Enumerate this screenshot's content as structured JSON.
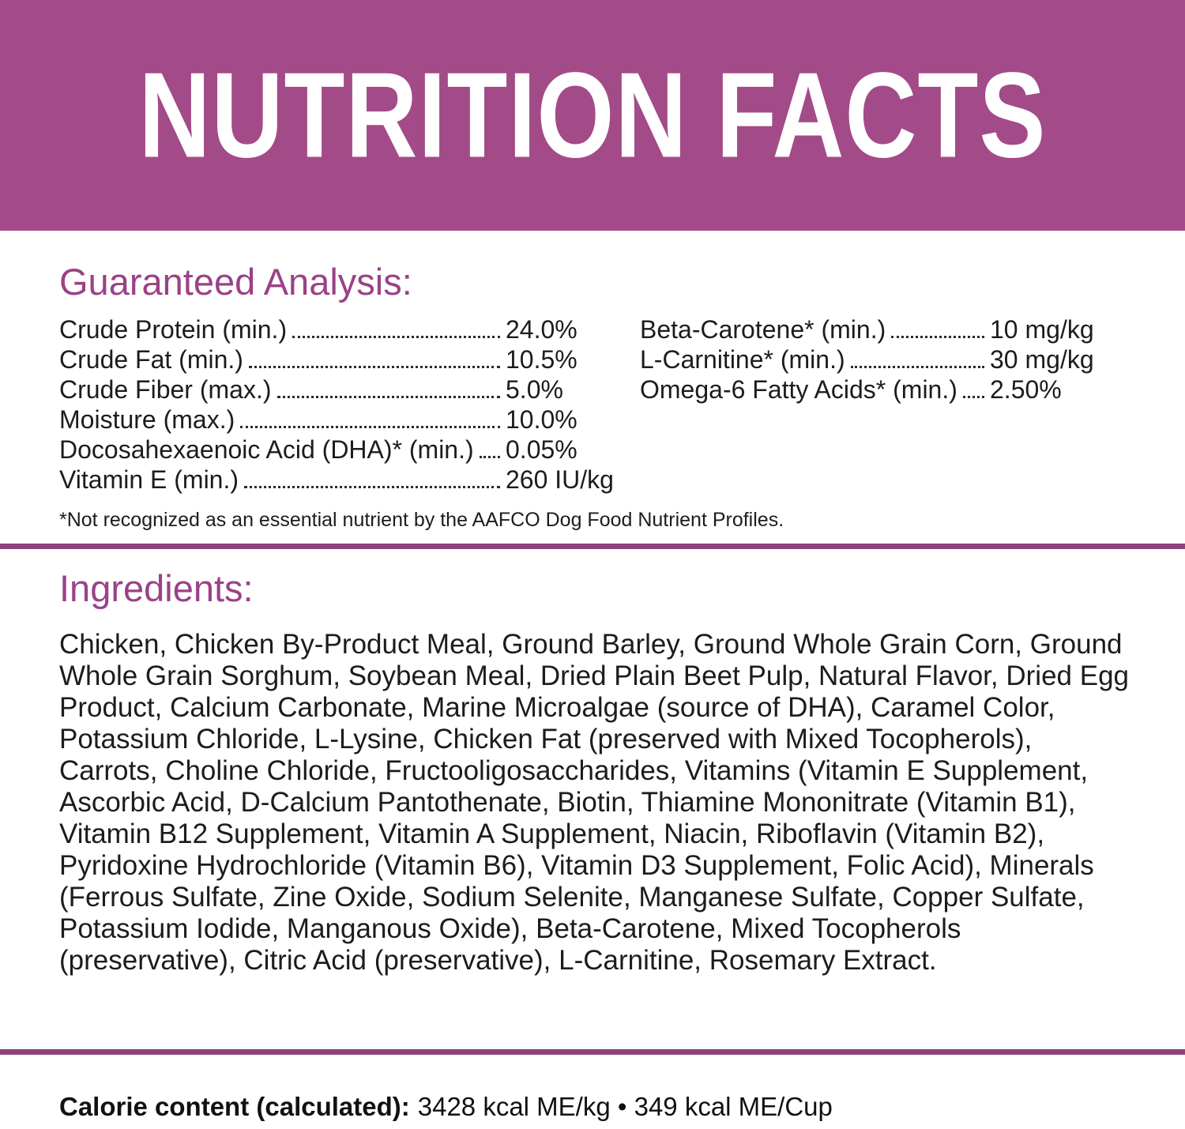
{
  "banner": {
    "title": "NUTRITION FACTS"
  },
  "guaranteed_analysis": {
    "heading": "Guaranteed Analysis:",
    "left_rows": [
      {
        "label": "Crude Protein (min.)",
        "value": "24.0%"
      },
      {
        "label": "Crude Fat (min.)",
        "value": "10.5%"
      },
      {
        "label": "Crude Fiber (max.)",
        "value": "5.0%"
      },
      {
        "label": "Moisture (max.)",
        "value": "10.0%"
      },
      {
        "label": "Docosahexaenoic Acid (DHA)* (min.)",
        "value": "0.05%"
      },
      {
        "label": "Vitamin E (min.)",
        "value": "260 IU/kg"
      }
    ],
    "right_rows": [
      {
        "label": "Beta-Carotene* (min.)",
        "value": "10 mg/kg"
      },
      {
        "label": "L-Carnitine* (min.)",
        "value": "30 mg/kg"
      },
      {
        "label": "Omega-6 Fatty Acids* (min.)",
        "value": "2.50%"
      }
    ],
    "footnote": "*Not recognized as an essential nutrient by the AAFCO Dog Food Nutrient Profiles."
  },
  "ingredients": {
    "heading": "Ingredients:",
    "text": "Chicken, Chicken By-Product Meal, Ground Barley, Ground Whole Grain Corn, Ground Whole Grain Sorghum, Soybean Meal, Dried Plain Beet Pulp, Natural Flavor, Dried Egg Product, Calcium Carbonate, Marine Microalgae (source of DHA), Caramel Color, Potassium Chloride, L-Lysine, Chicken Fat (preserved with Mixed Tocopherols), Carrots, Choline Chloride, Fructooligosaccharides, Vitamins (Vitamin E Supplement, Ascorbic Acid, D-Calcium Pantothenate, Biotin, Thiamine Mononitrate (Vitamin B1), Vitamin B12 Supplement, Vitamin A Supplement, Niacin, Riboflavin (Vitamin B2), Pyridoxine Hydrochloride (Vitamin B6), Vitamin D3 Supplement, Folic Acid), Minerals (Ferrous Sulfate, Zine Oxide, Sodium Selenite, Manganese Sulfate, Copper Sulfate, Potassium Iodide, Manganous Oxide), Beta-Carotene, Mixed Tocopherols (preservative), Citric Acid (preservative), L-Carnitine, Rosemary Extract."
  },
  "calorie": {
    "label": "Calorie content (calculated):",
    "value": "3428 kcal ME/kg • 349 kcal ME/Cup"
  },
  "colors": {
    "banner_background": "#A34B88",
    "heading_purple": "#9A4287",
    "divider_purple": "#8E417C",
    "body_text": "#1C1C1C"
  }
}
